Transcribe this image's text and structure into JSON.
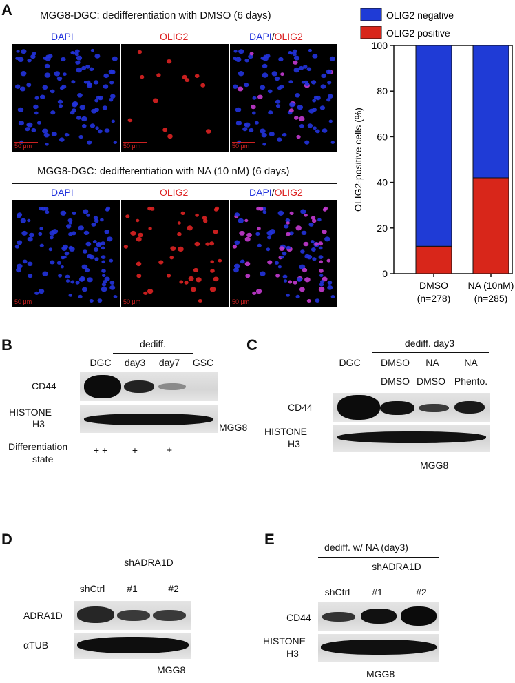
{
  "panel_a": {
    "letter": "A",
    "row1_title": "MGG8-DGC: dedifferentiation with DMSO (6 days)",
    "row2_title": "MGG8-DGC: dedifferentiation with NA (10 nM) (6 days)",
    "channels": {
      "dapi": "DAPI",
      "olig2": "OLIG2",
      "merge_a": "DAPI",
      "slash": "/",
      "merge_b": "OLIG2"
    },
    "scale_bar": "50 μm",
    "colors": {
      "dapi": "#2233dd",
      "olig2": "#dd2222",
      "negative_bar": "#1f3bd6",
      "positive_bar": "#d8261a"
    }
  },
  "chart_data": {
    "type": "bar",
    "stacked": true,
    "categories": [
      "DMSO\n(n=278)",
      "NA (10nM)\n(n=285)"
    ],
    "category_lines": [
      [
        "DMSO",
        "(n=278)"
      ],
      [
        "NA (10nM)",
        "(n=285)"
      ]
    ],
    "series": [
      {
        "name": "OLIG2 positive",
        "values": [
          12,
          42
        ],
        "color": "#d8261a"
      },
      {
        "name": "OLIG2 negative",
        "values": [
          88,
          58
        ],
        "color": "#1f3bd6"
      }
    ],
    "ylabel": "OLIG2-positive cells (%)",
    "ylim": [
      0,
      100
    ],
    "yticks": [
      "0",
      "20",
      "40",
      "60",
      "80",
      "100"
    ],
    "legend": "top",
    "legend_items": [
      "OLIG2 negative",
      "OLIG2 positive"
    ]
  },
  "panel_b": {
    "letter": "B",
    "group_label": "dediff.",
    "columns": [
      "DGC",
      "day3",
      "day7",
      "GSC"
    ],
    "rows": [
      "CD44",
      "HISTONE",
      "H3"
    ],
    "cell_line": "MGG8",
    "state_label_1": "Differentiation",
    "state_label_2": "state",
    "states": [
      "+ +",
      "+",
      "±",
      "—"
    ]
  },
  "panel_c": {
    "letter": "C",
    "group_label": "dediff. day3",
    "col_dgc": "DGC",
    "top_row": [
      "DMSO",
      "NA",
      "NA"
    ],
    "bottom_row": [
      "DMSO",
      "DMSO",
      "Phento."
    ],
    "rows": [
      "CD44",
      "HISTONE",
      "H3"
    ],
    "cell_line": "MGG8"
  },
  "panel_d": {
    "letter": "D",
    "group_label": "shADRA1D",
    "columns": [
      "shCtrl",
      "#1",
      "#2"
    ],
    "rows": [
      "ADRA1D",
      "αTUB"
    ],
    "cell_line": "MGG8"
  },
  "panel_e": {
    "letter": "E",
    "title": "dediff. w/ NA (day3)",
    "group_label": "shADRA1D",
    "columns": [
      "shCtrl",
      "#1",
      "#2"
    ],
    "rows": [
      "CD44",
      "HISTONE",
      "H3"
    ],
    "cell_line": "MGG8"
  }
}
